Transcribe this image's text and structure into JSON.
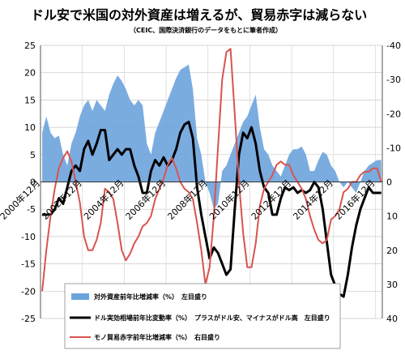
{
  "chart_data": {
    "type": "line",
    "title": "ドル安で米国の対外資産は増えるが、貿易赤字は減らない",
    "subtitle": "（CEIC、国際決済銀行のデータをもとに筆者作成）",
    "left_axis": {
      "ylim": [
        -25,
        25
      ],
      "ticks": [
        25,
        20,
        15,
        10,
        5,
        0,
        -5,
        -10,
        -15,
        -20,
        -25
      ]
    },
    "right_axis": {
      "ylim": [
        -40,
        40
      ],
      "inverted": true,
      "ticks": [
        -40,
        -30,
        -20,
        -10,
        0,
        10,
        20,
        30,
        40
      ]
    },
    "x_range": [
      2000.92,
      2017.25
    ],
    "x_tick_labels": [
      "2000年12月",
      "2002年12月",
      "2004年12月",
      "2006年12月",
      "2008年12月",
      "2010年12月",
      "2012年12月",
      "2014年12月",
      "2016年12月"
    ],
    "x_tick_positions": [
      2000.92,
      2002.92,
      2004.92,
      2006.92,
      2008.92,
      2010.92,
      2012.92,
      2014.92,
      2016.92
    ],
    "grid": true,
    "series": [
      {
        "name": "対外資産前年比増減率（%）　左目盛り",
        "axis": "left",
        "style": "area",
        "color": "#6ba3dd",
        "x": [
          2001.0,
          2001.2,
          2001.4,
          2001.6,
          2001.8,
          2002.0,
          2002.2,
          2002.4,
          2002.6,
          2002.8,
          2003.0,
          2003.2,
          2003.4,
          2003.6,
          2003.8,
          2004.0,
          2004.2,
          2004.4,
          2004.6,
          2004.8,
          2005.0,
          2005.2,
          2005.4,
          2005.6,
          2005.8,
          2006.0,
          2006.2,
          2006.4,
          2006.6,
          2006.8,
          2007.0,
          2007.2,
          2007.4,
          2007.6,
          2007.8,
          2008.0,
          2008.2,
          2008.4,
          2008.6,
          2008.8,
          2009.0,
          2009.2,
          2009.4,
          2009.6,
          2009.8,
          2010.0,
          2010.2,
          2010.4,
          2010.6,
          2010.8,
          2011.0,
          2011.2,
          2011.4,
          2011.6,
          2011.8,
          2012.0,
          2012.2,
          2012.4,
          2012.6,
          2012.8,
          2013.0,
          2013.2,
          2013.4,
          2013.6,
          2013.8,
          2014.0,
          2014.2,
          2014.4,
          2014.6,
          2014.8,
          2015.0,
          2015.2,
          2015.4,
          2015.6,
          2015.8,
          2016.0,
          2016.2,
          2016.4,
          2016.6,
          2016.8,
          2017.0,
          2017.2
        ],
        "y": [
          9,
          12,
          9,
          8,
          8.5,
          5,
          3,
          7,
          9,
          12,
          14,
          15,
          13,
          15,
          14,
          13,
          16,
          18,
          19.5,
          18.5,
          17,
          15,
          14,
          15,
          14,
          7,
          5,
          9,
          11,
          13,
          15,
          17,
          19,
          20.5,
          21,
          21.5,
          17,
          8,
          5,
          0,
          -2,
          -5,
          -4,
          2,
          3,
          5,
          7,
          9,
          11,
          12,
          14,
          16,
          10,
          6,
          5,
          3,
          2,
          1,
          3,
          5,
          6,
          6,
          6.5,
          5,
          2,
          2,
          4,
          5.5,
          5,
          3,
          2,
          0,
          -1,
          0,
          -1,
          -2,
          0,
          2,
          3,
          3.5,
          4,
          4
        ]
      },
      {
        "name": "ドル実効相場前年比変動率（%）　プラスがドル安、マイナスがドル高　左目盛り",
        "axis": "left",
        "style": "line",
        "color": "#000000",
        "x": [
          2001.0,
          2001.2,
          2001.4,
          2001.6,
          2001.8,
          2002.0,
          2002.2,
          2002.4,
          2002.6,
          2002.8,
          2003.0,
          2003.2,
          2003.4,
          2003.6,
          2003.8,
          2004.0,
          2004.2,
          2004.4,
          2004.6,
          2004.8,
          2005.0,
          2005.2,
          2005.4,
          2005.6,
          2005.8,
          2006.0,
          2006.2,
          2006.4,
          2006.6,
          2006.8,
          2007.0,
          2007.2,
          2007.4,
          2007.6,
          2007.8,
          2008.0,
          2008.2,
          2008.4,
          2008.6,
          2008.8,
          2009.0,
          2009.2,
          2009.4,
          2009.6,
          2009.8,
          2010.0,
          2010.2,
          2010.4,
          2010.6,
          2010.8,
          2011.0,
          2011.2,
          2011.4,
          2011.6,
          2011.8,
          2012.0,
          2012.2,
          2012.4,
          2012.6,
          2012.8,
          2013.0,
          2013.2,
          2013.4,
          2013.6,
          2013.8,
          2014.0,
          2014.2,
          2014.4,
          2014.6,
          2014.8,
          2015.0,
          2015.2,
          2015.4,
          2015.6,
          2015.8,
          2016.0,
          2016.2,
          2016.4,
          2016.6,
          2016.8,
          2017.0,
          2017.2
        ],
        "y": [
          -6,
          -6,
          -6,
          -5,
          -3,
          -4,
          -1,
          2,
          3,
          2,
          6,
          7.5,
          5,
          7,
          9.5,
          9.5,
          4,
          5,
          6,
          5,
          6,
          6,
          3,
          1,
          -2,
          -2,
          2,
          4,
          3,
          4.5,
          3,
          4,
          6,
          9,
          10.5,
          11,
          8,
          -1,
          -6,
          -10,
          -14,
          -12,
          -13,
          -15,
          -17,
          -16,
          -5,
          5,
          9,
          8,
          10,
          7,
          2,
          -1,
          -2,
          -6,
          -6,
          -3,
          -1,
          -1.5,
          -1,
          -2,
          -1.5,
          -2,
          -1.5,
          0,
          -1,
          -5,
          -11,
          -17,
          -19,
          -20.5,
          -21,
          -17,
          -12,
          -8,
          -5,
          -3,
          -1,
          -2,
          -2,
          -2
        ]
      },
      {
        "name": "モノ貿易赤字前年比増減率（%）　右目盛り",
        "axis": "right",
        "style": "line",
        "color": "#d9534f",
        "x": [
          2001.0,
          2001.2,
          2001.4,
          2001.6,
          2001.8,
          2002.0,
          2002.2,
          2002.4,
          2002.6,
          2002.8,
          2003.0,
          2003.2,
          2003.4,
          2003.6,
          2003.8,
          2004.0,
          2004.2,
          2004.4,
          2004.6,
          2004.8,
          2005.0,
          2005.2,
          2005.4,
          2005.6,
          2005.8,
          2006.0,
          2006.2,
          2006.4,
          2006.6,
          2006.8,
          2007.0,
          2007.2,
          2007.4,
          2007.6,
          2007.8,
          2008.0,
          2008.2,
          2008.4,
          2008.6,
          2008.8,
          2009.0,
          2009.2,
          2009.4,
          2009.6,
          2009.8,
          2010.0,
          2010.2,
          2010.4,
          2010.6,
          2010.8,
          2011.0,
          2011.2,
          2011.4,
          2011.6,
          2011.8,
          2012.0,
          2012.2,
          2012.4,
          2012.6,
          2012.8,
          2013.0,
          2013.2,
          2013.4,
          2013.6,
          2013.8,
          2014.0,
          2014.2,
          2014.4,
          2014.6,
          2014.8,
          2015.0,
          2015.2,
          2015.4,
          2015.6,
          2015.8,
          2016.0,
          2016.2,
          2016.4,
          2016.6,
          2016.8,
          2017.0,
          2017.2
        ],
        "y": [
          32,
          20,
          10,
          2,
          -4,
          -7,
          -9,
          -6,
          0,
          6,
          16,
          20,
          20,
          17,
          12,
          2,
          3,
          5,
          12,
          20,
          23,
          21,
          18,
          16,
          13,
          12,
          10,
          5,
          2,
          -1,
          -5,
          -7,
          -4,
          0,
          2,
          3,
          5,
          12,
          20,
          30,
          25,
          10,
          -10,
          -30,
          -38,
          -39,
          -20,
          0,
          15,
          25,
          25,
          18,
          7,
          2,
          0,
          -2,
          -5,
          -6,
          -5,
          -5,
          -2,
          0,
          2,
          5,
          10,
          14,
          17,
          18,
          17,
          11,
          10,
          8,
          3,
          2,
          0,
          0,
          -2,
          -3,
          -3,
          -4,
          -4,
          0
        ]
      }
    ],
    "legend": {
      "placement": "bottom-center"
    }
  }
}
